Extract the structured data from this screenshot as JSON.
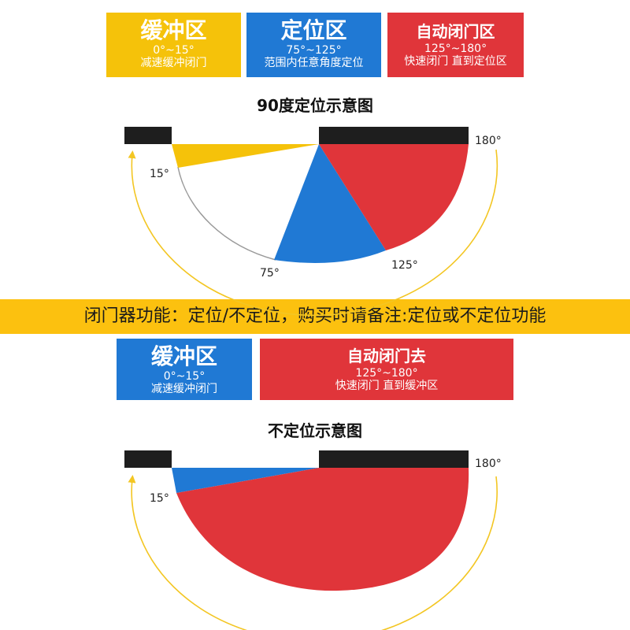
{
  "top_zones": [
    {
      "title": "缓冲区",
      "range": "0°~15°",
      "desc": "减速缓冲闭门",
      "color": "#f5c20a"
    },
    {
      "title": "定位区",
      "range": "75°~125°",
      "desc": "范围内任意角度定位",
      "color": "#2079d4"
    },
    {
      "title": "自动闭门区",
      "range": "125°~180°",
      "desc": "快速闭门 直到定位区",
      "color": "#e0353a"
    }
  ],
  "diagram1": {
    "title": "90度定位示意图",
    "labels": {
      "a180": "180°",
      "a15": "15°",
      "a75": "75°",
      "a125": "125°"
    }
  },
  "banner": "闭门器功能：定位/不定位，购买时请备注:定位或不定位功能",
  "bottom_zones": [
    {
      "title": "缓冲区",
      "range": "0°~15°",
      "desc": "减速缓冲闭门",
      "color": "#2079d4"
    },
    {
      "title": "自动闭门去",
      "range": "125°~180°",
      "desc": "快速闭门 直到缓冲区",
      "color": "#e0353a"
    }
  ],
  "diagram2": {
    "title": "不定位示意图",
    "labels": {
      "a180": "180°",
      "a15": "15°"
    }
  },
  "colors": {
    "yellow": "#f5c20a",
    "blue": "#2079d4",
    "red": "#e0353a",
    "frame": "#1e1e1e",
    "arrow": "#f3c623"
  }
}
